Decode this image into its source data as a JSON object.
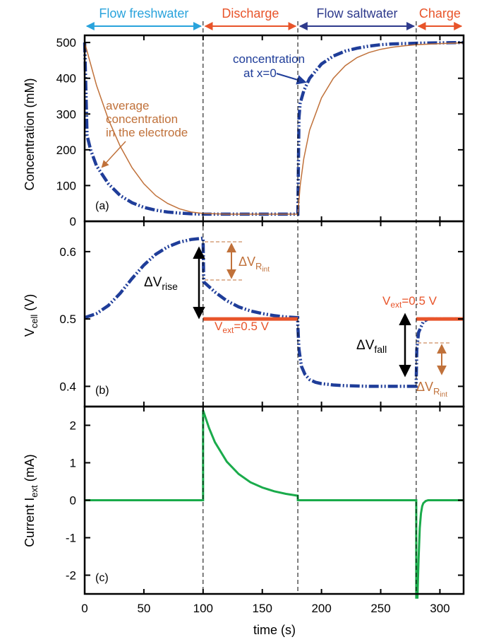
{
  "chart_data": [
    {
      "panel_label": "(a)",
      "type": "line",
      "xlabel": "",
      "ylabel": "Concentration (mM)",
      "xlim": [
        0,
        320
      ],
      "ylim": [
        0,
        520
      ],
      "y_ticks": [
        0,
        100,
        200,
        300,
        400,
        500
      ],
      "grid": false,
      "phases": [
        {
          "label": "Flow freshwater",
          "start": 0,
          "end": 100,
          "color": "#29a3dc"
        },
        {
          "label": "Discharge",
          "start": 100,
          "end": 180,
          "color": "#e8542a"
        },
        {
          "label": "Flow saltwater",
          "start": 180,
          "end": 280,
          "color": "#2e3a8c"
        },
        {
          "label": "Charge",
          "start": 280,
          "end": 320,
          "color": "#e8542a"
        }
      ],
      "series": [
        {
          "name": "concentration at x=0",
          "color": "#1f3d99",
          "style": "dash-dot-dot",
          "x": [
            0,
            2,
            5,
            10,
            20,
            30,
            40,
            50,
            60,
            70,
            80,
            90,
            100,
            120,
            140,
            160,
            179.9,
            180,
            181,
            182,
            185,
            190,
            200,
            210,
            220,
            230,
            240,
            250,
            260,
            270,
            280,
            300,
            320
          ],
          "values": [
            500,
            240,
            200,
            155,
            105,
            72,
            52,
            39,
            31,
            26,
            23,
            21,
            20,
            20,
            20,
            20,
            20,
            20,
            290,
            330,
            365,
            400,
            440,
            462,
            476,
            484,
            490,
            494,
            496,
            497,
            498,
            499,
            500
          ]
        },
        {
          "name": "average concentration in the electrode",
          "color": "#c0713a",
          "style": "solid",
          "x": [
            0,
            5,
            10,
            20,
            30,
            40,
            50,
            60,
            70,
            80,
            90,
            100,
            120,
            140,
            160,
            179.9,
            180,
            182,
            185,
            190,
            200,
            210,
            220,
            230,
            240,
            250,
            260,
            270,
            280,
            300,
            320
          ],
          "values": [
            500,
            440,
            380,
            285,
            210,
            150,
            105,
            72,
            50,
            35,
            26,
            22,
            20,
            20,
            20,
            20,
            20,
            100,
            175,
            255,
            345,
            400,
            435,
            458,
            472,
            481,
            487,
            491,
            494,
            497,
            499
          ]
        }
      ],
      "annotations": [
        {
          "text": [
            "concentration",
            "at x=0"
          ],
          "color": "#1f3d99"
        },
        {
          "text": [
            "average",
            "concentration",
            "in the electrode"
          ],
          "color": "#c0713a"
        }
      ]
    },
    {
      "panel_label": "(b)",
      "type": "line",
      "xlabel": "",
      "ylabel_main": "V",
      "ylabel_sub": "cell",
      "ylabel_unit": " (V)",
      "xlim": [
        0,
        320
      ],
      "ylim": [
        0.37,
        0.645
      ],
      "y_ticks": [
        "0.4",
        "0.5",
        "0.6"
      ],
      "grid": false,
      "series": [
        {
          "name": "Vcell",
          "color": "#1f3d99",
          "style": "dash-dot-dot",
          "x": [
            0,
            10,
            20,
            30,
            40,
            50,
            60,
            70,
            80,
            90,
            100,
            100.5,
            110,
            120,
            130,
            140,
            150,
            160,
            170,
            179.9,
            180,
            181,
            183,
            186,
            190,
            195,
            200,
            210,
            220,
            240,
            260,
            279.9,
            280.5,
            282,
            286,
            290,
            300,
            320
          ],
          "values": [
            0.502,
            0.508,
            0.52,
            0.538,
            0.56,
            0.58,
            0.596,
            0.607,
            0.614,
            0.618,
            0.62,
            0.555,
            0.54,
            0.527,
            0.518,
            0.512,
            0.508,
            0.505,
            0.503,
            0.502,
            0.49,
            0.455,
            0.43,
            0.418,
            0.41,
            0.406,
            0.404,
            0.402,
            0.401,
            0.4,
            0.4,
            0.4,
            0.455,
            0.48,
            0.496,
            0.5,
            0.5,
            0.5
          ]
        },
        {
          "name": "Vext (discharge)",
          "color": "#e8542a",
          "style": "solid",
          "x": [
            100,
            180
          ],
          "values": [
            0.5,
            0.5
          ]
        },
        {
          "name": "Vext (charge)",
          "color": "#e8542a",
          "style": "solid",
          "x": [
            280,
            320
          ],
          "values": [
            0.5,
            0.5
          ]
        }
      ],
      "annotations": {
        "dv_rise": {
          "main": "ΔV",
          "sub": "rise"
        },
        "dv_fall": {
          "main": "ΔV",
          "sub": "fall"
        },
        "dv_rint_main": "ΔV",
        "dv_rint_sub": "R",
        "dv_rint_subsub": "int",
        "vext_main": "V",
        "vext_sub": "ext",
        "vext_val": "=0.5 V"
      }
    },
    {
      "panel_label": "(c)",
      "type": "line",
      "xlabel": "time (s)",
      "ylabel_main": "Current I",
      "ylabel_sub": "ext",
      "ylabel_unit": " (mA)",
      "xlim": [
        0,
        320
      ],
      "ylim": [
        -2.5,
        2.5
      ],
      "y_ticks": [
        -2,
        -1,
        0,
        1,
        2
      ],
      "x_ticks": [
        0,
        50,
        100,
        150,
        200,
        250,
        300
      ],
      "grid": false,
      "series": [
        {
          "name": "Iext",
          "color": "#1aab4b",
          "style": "solid",
          "x": [
            0,
            100,
            100.001,
            105,
            110,
            120,
            130,
            140,
            150,
            160,
            170,
            179.9,
            180,
            280,
            280.001,
            281,
            282,
            283,
            284,
            285,
            286,
            288,
            290,
            320
          ],
          "values": [
            0,
            0,
            2.4,
            1.93,
            1.55,
            1.03,
            0.7,
            0.48,
            0.34,
            0.24,
            0.17,
            0.12,
            0,
            0,
            -2.6,
            -2.6,
            -1.58,
            -0.74,
            -0.35,
            -0.16,
            -0.08,
            -0.02,
            0,
            0
          ]
        }
      ]
    }
  ]
}
